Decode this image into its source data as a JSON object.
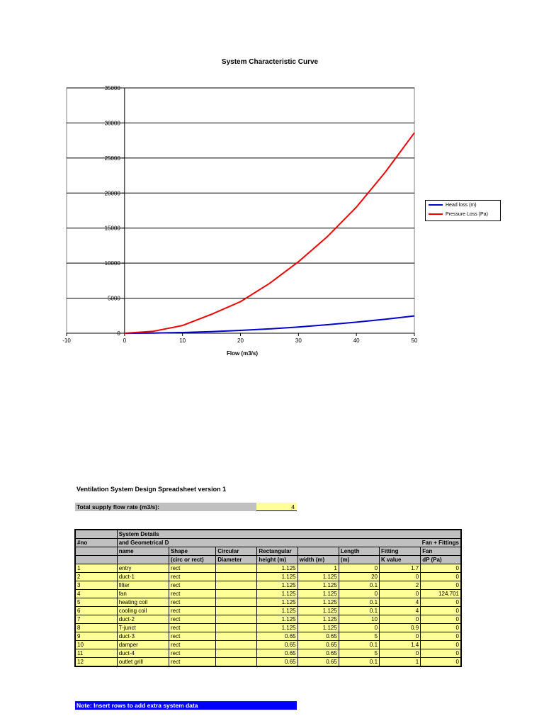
{
  "chart_data": {
    "type": "line",
    "title": "System Characteristic Curve",
    "xlabel": "Flow (m3/s)",
    "ylabel": "",
    "xlim": [
      -10,
      50
    ],
    "ylim": [
      0,
      35000
    ],
    "xticks": [
      "-10",
      "0",
      "10",
      "20",
      "30",
      "40",
      "50"
    ],
    "yticks": [
      "0",
      "5000",
      "10000",
      "15000",
      "20000",
      "25000",
      "30000",
      "35000"
    ],
    "grid": "horizontal",
    "legend_position": "right",
    "series": [
      {
        "name": "Head loss (m)",
        "color": "#0000cc",
        "x": [
          0,
          5,
          10,
          15,
          20,
          25,
          30,
          35,
          40,
          45,
          50
        ],
        "values": [
          0,
          25,
          100,
          225,
          400,
          620,
          890,
          1210,
          1580,
          2000,
          2470
        ]
      },
      {
        "name": "Pressure Loss (Pa)",
        "color": "#ee0000",
        "x": [
          0,
          5,
          10,
          15,
          20,
          25,
          30,
          35,
          40,
          45,
          50
        ],
        "values": [
          0,
          280,
          1100,
          2700,
          4500,
          7100,
          10200,
          13800,
          18000,
          23000,
          28600
        ]
      }
    ]
  },
  "sheet": {
    "title": "Ventilation System Design Spreadsheet version 1",
    "supply_label": "Total supply flow rate (m3/s):",
    "supply_value": "4",
    "header": {
      "r1": {
        "c2": "System Details"
      },
      "r2": {
        "c1": "#no",
        "c2": "and Geometrical Data",
        "fan_fittings": "Fan + Fittings"
      },
      "r3": {
        "c2": "name",
        "c3": "Shape",
        "c4": "Circular",
        "c5": "Rectangular",
        "c6": "",
        "c7": "Length",
        "c8": "Fitting",
        "c9": "Fan"
      },
      "r4": {
        "c2": "",
        "c3": "(circ or rect)",
        "c4": "Diameter",
        "c5": "height (m)",
        "c6": "width (m)",
        "c7": "(m)",
        "c8": "K value",
        "c9": "dP (Pa)"
      }
    },
    "rows": [
      [
        "1",
        "entry",
        "rect",
        "",
        "1.125",
        "1",
        "0",
        "1.7",
        "0"
      ],
      [
        "2",
        "duct-1",
        "rect",
        "",
        "1.125",
        "1.125",
        "20",
        "0",
        "0"
      ],
      [
        "3",
        "filter",
        "rect",
        "",
        "1.125",
        "1.125",
        "0.1",
        "2",
        "0"
      ],
      [
        "4",
        "fan",
        "rect",
        "",
        "1.125",
        "1.125",
        "0",
        "0",
        "124.701"
      ],
      [
        "5",
        "heating coil",
        "rect",
        "",
        "1.125",
        "1.125",
        "0.1",
        "4",
        "0"
      ],
      [
        "6",
        "cooling coil",
        "rect",
        "",
        "1.125",
        "1.125",
        "0.1",
        "4",
        "0"
      ],
      [
        "7",
        "duct-2",
        "rect",
        "",
        "1.125",
        "1.125",
        "10",
        "0",
        "0"
      ],
      [
        "8",
        "T-junct",
        "rect",
        "",
        "1.125",
        "1.125",
        "0",
        "0.9",
        "0"
      ],
      [
        "9",
        "duct-3",
        "rect",
        "",
        "0.65",
        "0.65",
        "5",
        "0",
        "0"
      ],
      [
        "10",
        "damper",
        "rect",
        "",
        "0.65",
        "0.65",
        "0.1",
        "1.4",
        "0"
      ],
      [
        "11",
        "duct-4",
        "rect",
        "",
        "0.65",
        "0.65",
        "5",
        "0",
        "0"
      ],
      [
        "12",
        "outlet grill",
        "rect",
        "",
        "0.65",
        "0.65",
        "0.1",
        "1",
        "0"
      ]
    ],
    "note": "Note: Insert rows to add extra system data"
  }
}
